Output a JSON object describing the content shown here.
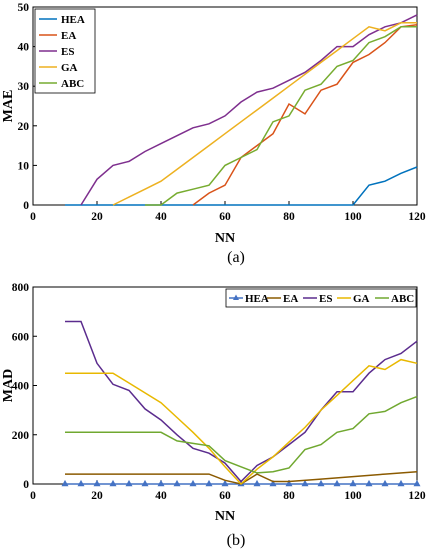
{
  "chart_data": [
    {
      "type": "line",
      "caption": "(a)",
      "xlabel": "NN",
      "ylabel": "MAE",
      "xlim": [
        0,
        120
      ],
      "ylim": [
        0,
        50
      ],
      "xticks": [
        "0",
        "20",
        "40",
        "60",
        "80",
        "100",
        "120"
      ],
      "yticks": [
        "0",
        "10",
        "20",
        "30",
        "40",
        "50"
      ],
      "legend_position": "top-left",
      "series": [
        {
          "name": "HEA",
          "color": "#0072BD",
          "x": [
            10,
            100,
            105,
            110,
            115,
            120
          ],
          "y": [
            0,
            0,
            5,
            6,
            8,
            9.6
          ]
        },
        {
          "name": "EA",
          "color": "#D95319",
          "x": [
            50,
            55,
            60,
            65,
            70,
            75,
            80,
            85,
            90,
            95,
            100,
            105,
            110,
            115,
            120
          ],
          "y": [
            0,
            3,
            5,
            12,
            15,
            18,
            25.5,
            23,
            29,
            30.5,
            36,
            38,
            41,
            45,
            45.5
          ]
        },
        {
          "name": "ES",
          "color": "#7E2F8E",
          "x": [
            15,
            20,
            25,
            30,
            35,
            40,
            45,
            50,
            55,
            60,
            65,
            70,
            75,
            80,
            85,
            90,
            95,
            100,
            105,
            110,
            115,
            120
          ],
          "y": [
            0,
            6.5,
            10,
            11,
            13.5,
            15.5,
            17.5,
            19.5,
            20.5,
            22.5,
            26,
            28.5,
            29.5,
            31.5,
            33.5,
            36.5,
            40,
            40,
            43,
            45,
            46,
            48
          ]
        },
        {
          "name": "GA",
          "color": "#EDB120",
          "x": [
            25,
            30,
            35,
            40,
            45,
            50,
            55,
            60,
            65,
            70,
            75,
            80,
            85,
            90,
            95,
            100,
            105,
            110,
            115,
            120
          ],
          "y": [
            0,
            2,
            4,
            6,
            9,
            12,
            15,
            18,
            21,
            24,
            27,
            30,
            33,
            36,
            39,
            42,
            45,
            44,
            46,
            46
          ]
        },
        {
          "name": "ABC",
          "color": "#77AC30",
          "x": [
            35,
            40,
            45,
            50,
            55,
            60,
            65,
            70,
            75,
            80,
            85,
            90,
            95,
            100,
            105,
            110,
            115,
            120
          ],
          "y": [
            0,
            0,
            3,
            4,
            5,
            10,
            12,
            14,
            21,
            22.5,
            29,
            30.5,
            35,
            36.5,
            41,
            42.5,
            45,
            45
          ]
        }
      ]
    },
    {
      "type": "line",
      "caption": "(b)",
      "xlabel": "NN",
      "ylabel": "MAD",
      "xlim": [
        0,
        120
      ],
      "ylim": [
        0,
        800
      ],
      "xticks": [
        "0",
        "20",
        "40",
        "60",
        "80",
        "100",
        "120"
      ],
      "yticks": [
        "0",
        "200",
        "400",
        "600",
        "800"
      ],
      "legend_position": "top-right",
      "series": [
        {
          "name": "HEA",
          "color": "#4472C4",
          "marker": "triangle",
          "x": [
            10,
            15,
            20,
            25,
            30,
            35,
            40,
            45,
            50,
            55,
            60,
            65,
            70,
            75,
            80,
            85,
            90,
            95,
            100,
            105,
            110,
            115,
            120
          ],
          "y": [
            0,
            0,
            0,
            0,
            0,
            0,
            0,
            0,
            0,
            0,
            0,
            0,
            0,
            0,
            0,
            0,
            0,
            0,
            0,
            0,
            0,
            0,
            0
          ]
        },
        {
          "name": "EA",
          "color": "#8B5A00",
          "x": [
            10,
            20,
            30,
            40,
            50,
            55,
            60,
            65,
            70,
            75,
            80,
            90,
            100,
            110,
            120
          ],
          "y": [
            40,
            40,
            40,
            40,
            40,
            40,
            15,
            0,
            40,
            10,
            10,
            20,
            30,
            40,
            50
          ]
        },
        {
          "name": "ES",
          "color": "#5B2C8E",
          "x": [
            10,
            15,
            20,
            25,
            30,
            35,
            40,
            45,
            50,
            55,
            60,
            65,
            70,
            75,
            80,
            85,
            90,
            95,
            100,
            105,
            110,
            115,
            120
          ],
          "y": [
            660,
            660,
            490,
            405,
            380,
            305,
            260,
            200,
            145,
            125,
            85,
            10,
            75,
            110,
            160,
            210,
            300,
            375,
            375,
            450,
            505,
            530,
            580
          ]
        },
        {
          "name": "GA",
          "color": "#E8B800",
          "x": [
            10,
            15,
            20,
            25,
            30,
            35,
            40,
            45,
            50,
            55,
            60,
            65,
            70,
            75,
            80,
            85,
            90,
            95,
            100,
            105,
            110,
            115,
            120
          ],
          "y": [
            450,
            450,
            450,
            450,
            410,
            370,
            330,
            270,
            210,
            145,
            70,
            0,
            60,
            110,
            170,
            230,
            300,
            360,
            420,
            480,
            465,
            505,
            490
          ]
        },
        {
          "name": "ABC",
          "color": "#70A830",
          "x": [
            10,
            15,
            20,
            25,
            30,
            35,
            40,
            45,
            50,
            55,
            60,
            65,
            70,
            75,
            80,
            85,
            90,
            95,
            100,
            105,
            110,
            115,
            120
          ],
          "y": [
            210,
            210,
            210,
            210,
            210,
            210,
            210,
            175,
            165,
            155,
            95,
            70,
            45,
            50,
            65,
            140,
            160,
            210,
            225,
            285,
            295,
            330,
            355
          ]
        }
      ]
    }
  ]
}
